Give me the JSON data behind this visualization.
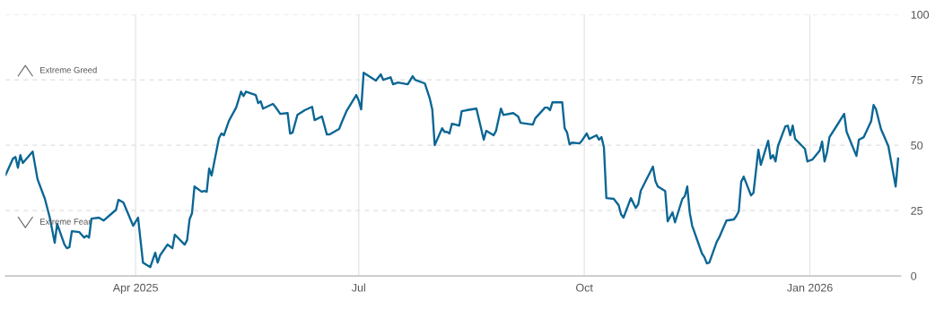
{
  "chart_data": {
    "type": "line",
    "x": [
      "2025-02-07",
      "2025-02-10",
      "2025-02-11",
      "2025-02-12",
      "2025-02-13",
      "2025-02-14",
      "2025-02-18",
      "2025-02-20",
      "2025-02-23",
      "2025-02-25",
      "2025-02-27",
      "2025-02-28",
      "2025-03-03",
      "2025-03-04",
      "2025-03-05",
      "2025-03-06",
      "2025-03-09",
      "2025-03-11",
      "2025-03-12",
      "2025-03-13",
      "2025-03-14",
      "2025-03-17",
      "2025-03-19",
      "2025-03-24",
      "2025-03-25",
      "2025-03-27",
      "2025-03-31",
      "2025-04-02",
      "2025-04-04",
      "2025-04-07",
      "2025-04-09",
      "2025-04-10",
      "2025-04-11",
      "2025-04-14",
      "2025-04-16",
      "2025-04-17",
      "2025-04-21",
      "2025-04-22",
      "2025-04-23",
      "2025-04-24",
      "2025-04-25",
      "2025-04-28",
      "2025-04-29",
      "2025-04-30",
      "2025-05-01",
      "2025-05-02",
      "2025-05-05",
      "2025-05-06",
      "2025-05-07",
      "2025-05-09",
      "2025-05-12",
      "2025-05-14",
      "2025-05-15",
      "2025-05-16",
      "2025-05-20",
      "2025-05-21",
      "2025-05-22",
      "2025-05-23",
      "2025-05-27",
      "2025-05-28",
      "2025-05-30",
      "2025-06-02",
      "2025-06-03",
      "2025-06-04",
      "2025-06-06",
      "2025-06-09",
      "2025-06-12",
      "2025-06-13",
      "2025-06-16",
      "2025-06-18",
      "2025-06-19",
      "2025-06-23",
      "2025-06-24",
      "2025-06-26",
      "2025-06-30",
      "2025-07-01",
      "2025-07-02",
      "2025-07-03",
      "2025-07-08",
      "2025-07-10",
      "2025-07-11",
      "2025-07-14",
      "2025-07-15",
      "2025-07-17",
      "2025-07-21",
      "2025-07-23",
      "2025-07-24",
      "2025-07-28",
      "2025-07-30",
      "2025-07-31",
      "2025-08-01",
      "2025-08-04",
      "2025-08-05",
      "2025-08-06",
      "2025-08-07",
      "2025-08-08",
      "2025-08-11",
      "2025-08-12",
      "2025-08-14",
      "2025-08-18",
      "2025-08-21",
      "2025-08-22",
      "2025-08-25",
      "2025-08-26",
      "2025-08-28",
      "2025-08-29",
      "2025-09-02",
      "2025-09-04",
      "2025-09-05",
      "2025-09-10",
      "2025-09-11",
      "2025-09-15",
      "2025-09-16",
      "2025-09-17",
      "2025-09-18",
      "2025-09-22",
      "2025-09-23",
      "2025-09-24",
      "2025-09-25",
      "2025-09-26",
      "2025-09-29",
      "2025-09-30",
      "2025-10-02",
      "2025-10-03",
      "2025-10-06",
      "2025-10-07",
      "2025-10-08",
      "2025-10-09",
      "2025-10-10",
      "2025-10-13",
      "2025-10-15",
      "2025-10-16",
      "2025-10-17",
      "2025-10-20",
      "2025-10-22",
      "2025-10-23",
      "2025-10-24",
      "2025-10-29",
      "2025-10-30",
      "2025-10-31",
      "2025-11-03",
      "2025-11-04",
      "2025-11-06",
      "2025-11-07",
      "2025-11-10",
      "2025-11-11",
      "2025-11-12",
      "2025-11-13",
      "2025-11-14",
      "2025-11-18",
      "2025-11-19",
      "2025-11-20",
      "2025-11-21",
      "2025-11-24",
      "2025-11-25",
      "2025-11-28",
      "2025-12-01",
      "2025-12-02",
      "2025-12-03",
      "2025-12-04",
      "2025-12-05",
      "2025-12-08",
      "2025-12-09",
      "2025-12-11",
      "2025-12-12",
      "2025-12-15",
      "2025-12-16",
      "2025-12-17",
      "2025-12-18",
      "2025-12-19",
      "2025-12-22",
      "2025-12-23",
      "2025-12-24",
      "2025-12-25",
      "2025-12-26",
      "2025-12-30",
      "2025-12-31",
      "2026-01-02",
      "2026-01-05",
      "2026-01-06",
      "2026-01-07",
      "2026-01-08",
      "2026-01-09",
      "2026-01-12",
      "2026-01-15",
      "2026-01-16",
      "2026-01-20",
      "2026-01-21",
      "2026-01-23",
      "2026-01-26",
      "2026-01-27",
      "2026-01-28",
      "2026-01-30",
      "2026-02-02",
      "2026-02-05",
      "2026-02-06"
    ],
    "series": [
      {
        "color": "#0b6694",
        "values": [
          38.7,
          44.9,
          45.5,
          41.4,
          46.2,
          43.2,
          47.6,
          37,
          29.5,
          22.3,
          12.7,
          19.9,
          12,
          10.6,
          11,
          17.1,
          16.8,
          14.7,
          15.4,
          14.7,
          21.9,
          22.3,
          21.2,
          25.3,
          29.1,
          28.1,
          19.2,
          22.3,
          5.1,
          3.4,
          8.9,
          5.1,
          7.9,
          12,
          10.6,
          15.8,
          12,
          13.7,
          21.6,
          24,
          34.2,
          32.2,
          32.5,
          32.2,
          41.1,
          38.4,
          52.7,
          54.5,
          53.8,
          59.2,
          64.4,
          70.5,
          68.8,
          70.5,
          69.2,
          66.1,
          66.8,
          64,
          65.8,
          64.7,
          62,
          62.3,
          54.5,
          54.8,
          61.6,
          63.4,
          64.7,
          59.6,
          61,
          54.1,
          54.1,
          56.2,
          58.6,
          63,
          69.2,
          67.1,
          63.7,
          77.7,
          74.7,
          77.1,
          75,
          76,
          73.3,
          74,
          73.3,
          76.4,
          75,
          73.6,
          67.8,
          63.7,
          50,
          56.5,
          55.1,
          55.1,
          54.5,
          58.2,
          57.5,
          63,
          63.4,
          64,
          52.1,
          55.5,
          53.8,
          55.5,
          64,
          61.6,
          62.3,
          61,
          58.6,
          57.9,
          60.3,
          64.4,
          64.4,
          63.4,
          66.4,
          66.4,
          56.5,
          54.8,
          50.3,
          51,
          50.7,
          51.7,
          54.5,
          52.4,
          53.8,
          52.1,
          53.1,
          49.3,
          29.8,
          29.5,
          27.1,
          23.6,
          22.3,
          29.8,
          26,
          27.4,
          32.5,
          41.8,
          36.3,
          34.2,
          32.5,
          20.9,
          24.3,
          20.5,
          29.5,
          30.5,
          34.2,
          24.3,
          19.2,
          8.6,
          7.2,
          4.8,
          5.1,
          13,
          14.7,
          21.2,
          21.6,
          22.9,
          24.7,
          36,
          38,
          30.8,
          31.8,
          48.3,
          42.5,
          51.7,
          44.9,
          46.2,
          43.8,
          49.7,
          57.2,
          57.5,
          53.8,
          57.5,
          52.4,
          48.6,
          43.8,
          44.5,
          47.9,
          51.4,
          43.8,
          47.3,
          53.1,
          57.5,
          62,
          55.1,
          45.9,
          52.1,
          53.1,
          59.2,
          65.4,
          63.7,
          56.2,
          49.7,
          34.2,
          44.9
        ]
      }
    ],
    "xlim": [
      "2025-02-07",
      "2026-02-07"
    ],
    "xticks": [
      {
        "value": "2025-04-01",
        "label": "Apr 2025"
      },
      {
        "value": "2025-07-01",
        "label": "Jul"
      },
      {
        "value": "2025-10-01",
        "label": "Oct"
      },
      {
        "value": "2026-01-01",
        "label": "Jan 2026"
      }
    ],
    "ylim": [
      0,
      100
    ],
    "yticks": [
      0,
      25,
      50,
      75,
      100
    ],
    "grid": true,
    "annotations": [
      "Extreme Greed",
      "Extreme Fear"
    ],
    "line_style": "solid",
    "marker": "none"
  }
}
